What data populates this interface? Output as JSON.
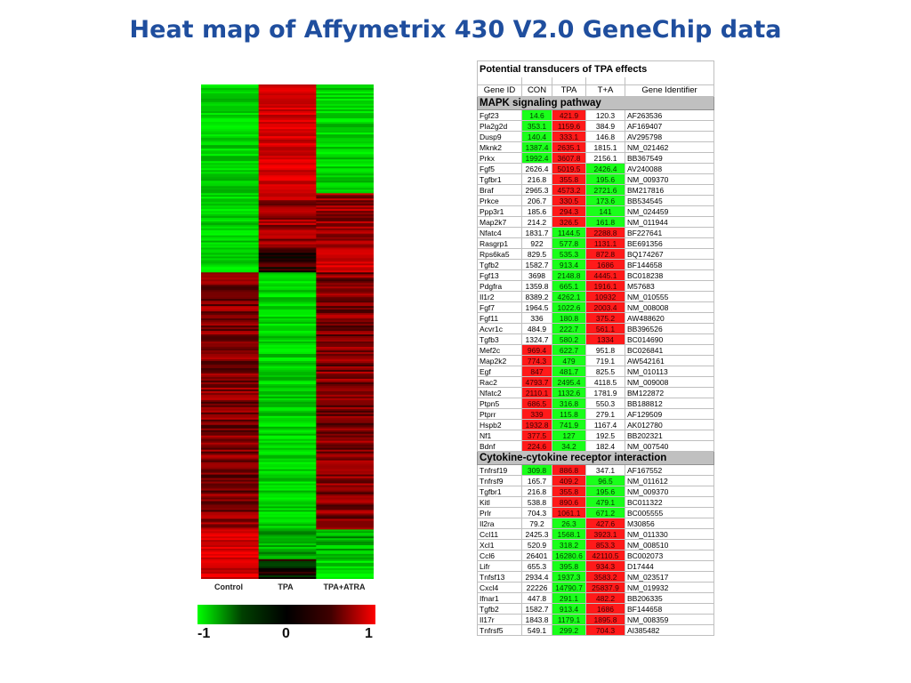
{
  "page": {
    "title": "Heat map of Affymetrix 430 V2.0 GeneChip data"
  },
  "heatmap": {
    "columns": [
      "Control",
      "TPA",
      "TPA+ATRA"
    ],
    "scale": {
      "min_label": "-1",
      "mid_label": "0",
      "max_label": "1"
    },
    "colors": {
      "low": "#00ff00",
      "mid": "#000000",
      "high": "#ff0000"
    }
  },
  "chart_data": {
    "type": "heatmap",
    "title": "Heat map of Affymetrix 430 V2.0 GeneChip data",
    "columns": [
      "Control",
      "TPA",
      "TPA+ATRA"
    ],
    "value_range": [
      -1,
      1
    ],
    "clusters": [
      {
        "row_fraction": 0.22,
        "values": [
          -1,
          1,
          -1
        ]
      },
      {
        "row_fraction": 0.11,
        "values": [
          -1,
          0.6,
          0.6
        ]
      },
      {
        "row_fraction": 0.05,
        "values": [
          -1,
          0.2,
          1
        ]
      },
      {
        "row_fraction": 0.52,
        "values": [
          0.5,
          -1,
          0.5
        ]
      },
      {
        "row_fraction": 0.06,
        "values": [
          1,
          -0.7,
          -0.7
        ]
      },
      {
        "row_fraction": 0.04,
        "values": [
          1,
          0,
          -0.9
        ]
      }
    ]
  },
  "table": {
    "title": "Potential transducers of TPA effects",
    "headers": [
      "Gene ID",
      "CON",
      "TPA",
      "T+A",
      "Gene Identifier"
    ],
    "sections": [
      {
        "name": "MAPK signaling pathway",
        "groups": [
          {
            "rows": [
              [
                "Fgf23",
                "14.6",
                "421.9",
                "120.3",
                "AF263536"
              ],
              [
                "Pla2g2d",
                "353.1",
                "1159.6",
                "384.9",
                "AF169407"
              ],
              [
                "Dusp9",
                "140.4",
                "333.1",
                "146.8",
                "AV295798"
              ],
              [
                "Mknk2",
                "1387.4",
                "2635.1",
                "1815.1",
                "NM_021462"
              ],
              [
                "Prkx",
                "1992.4",
                "3607.8",
                "2156.1",
                "BB367549"
              ],
              [
                "Fgf5",
                "2626.4",
                "5019.5",
                "2426.4",
                "AV240088"
              ],
              [
                "Tgfbr1",
                "216.8",
                "355.8",
                "195.6",
                "NM_009370"
              ],
              [
                "Braf",
                "2965.3",
                "4573.2",
                "2721.6",
                "BM217816"
              ],
              [
                "Prkce",
                "206.7",
                "330.5",
                "173.6",
                "BB534545"
              ],
              [
                "Ppp3r1",
                "185.6",
                "294.3",
                "141",
                "NM_024459"
              ],
              [
                "Map2k7",
                "214.2",
                "326.5",
                "161.8",
                "NM_011944"
              ]
            ]
          },
          {
            "rows": [
              [
                "Nfatc4",
                "1831.7",
                "1144.5",
                "2288.8",
                "BF227641"
              ],
              [
                "Rasgrp1",
                "922",
                "577.8",
                "1131.1",
                "BE691356"
              ],
              [
                "Rps6ka5",
                "829.5",
                "535.3",
                "872.8",
                "BQ174267"
              ],
              [
                "Tgfb2",
                "1582.7",
                "913.4",
                "1686",
                "BF144658"
              ],
              [
                "Fgf13",
                "3698",
                "2148.8",
                "4445.1",
                "BC018238"
              ],
              [
                "Pdgfra",
                "1359.8",
                "665.1",
                "1916.1",
                "M57683"
              ],
              [
                "Il1r2",
                "8389.2",
                "4262.1",
                "10932",
                "NM_010555"
              ],
              [
                "Fgf7",
                "1964.5",
                "1022.6",
                "2003.4",
                "NM_008008"
              ],
              [
                "Fgf11",
                "336",
                "180.8",
                "375.2",
                "AW488620"
              ],
              [
                "Acvr1c",
                "484.9",
                "222.7",
                "561.1",
                "BB396526"
              ],
              [
                "Tgfb3",
                "1324.7",
                "580.2",
                "1334",
                "BC014690"
              ],
              [
                "Mef2c",
                "969.4",
                "622.7",
                "951.8",
                "BC026841"
              ],
              [
                "Map2k2",
                "774.3",
                "479",
                "719.1",
                "AW542161"
              ],
              [
                "Egf",
                "847",
                "481.7",
                "825.5",
                "NM_010113"
              ],
              [
                "Rac2",
                "4793.7",
                "2495.4",
                "4118.5",
                "NM_009008"
              ],
              [
                "Nfatc2",
                "2110.1",
                "1132.6",
                "1781.9",
                "BM122872"
              ],
              [
                "Ptpn5",
                "686.5",
                "316.8",
                "550.3",
                "BB188812"
              ],
              [
                "Ptprr",
                "339",
                "115.8",
                "279.1",
                "AF129509"
              ],
              [
                "Hspb2",
                "1932.8",
                "741.9",
                "1167.4",
                "AK012780"
              ],
              [
                "Nf1",
                "377.5",
                "127",
                "192.5",
                "BB202321"
              ],
              [
                "Bdnf",
                "224.6",
                "34.2",
                "182.4",
                "NM_007540"
              ]
            ]
          }
        ]
      },
      {
        "name": "Cytokine-cytokine receptor interaction",
        "groups": [
          {
            "rows": [
              [
                "Tnfrsf19",
                "309.8",
                "886.8",
                "347.1",
                "AF167552"
              ],
              [
                "Tnfrsf9",
                "165.7",
                "409.2",
                "96.5",
                "NM_011612"
              ],
              [
                "Tgfbr1",
                "216.8",
                "355.8",
                "195.6",
                "NM_009370"
              ],
              [
                "Kitl",
                "538.8",
                "890.6",
                "479.1",
                "BC011322"
              ],
              [
                "Prlr",
                "704.3",
                "1061.1",
                "671.2",
                "BC005555"
              ]
            ]
          },
          {
            "rows": [
              [
                "Il2ra",
                "79.2",
                "26.3",
                "427.6",
                "M30856"
              ],
              [
                "Ccl11",
                "2425.3",
                "1568.1",
                "3923.1",
                "NM_011330"
              ],
              [
                "Xcl1",
                "520.9",
                "318.2",
                "853.3",
                "NM_008510"
              ],
              [
                "Ccl6",
                "26401",
                "16280.6",
                "42110.5",
                "BC002073"
              ],
              [
                "Lifr",
                "655.3",
                "395.8",
                "934.3",
                "D17444"
              ],
              [
                "Tnfsf13",
                "2934.4",
                "1937.3",
                "3583.2",
                "NM_023517"
              ],
              [
                "Cxcl4",
                "22226",
                "14790.7",
                "25837.9",
                "NM_019932"
              ],
              [
                "Ifnar1",
                "447.8",
                "291.1",
                "482.2",
                "BB206335"
              ],
              [
                "Tgfb2",
                "1582.7",
                "913.4",
                "1686",
                "BF144658"
              ],
              [
                "Il17r",
                "1843.8",
                "1179.1",
                "1895.8",
                "NM_008359"
              ],
              [
                "Tnfrsf5",
                "549.1",
                "299.2",
                "704.3",
                "AI385482"
              ]
            ]
          }
        ]
      }
    ]
  }
}
